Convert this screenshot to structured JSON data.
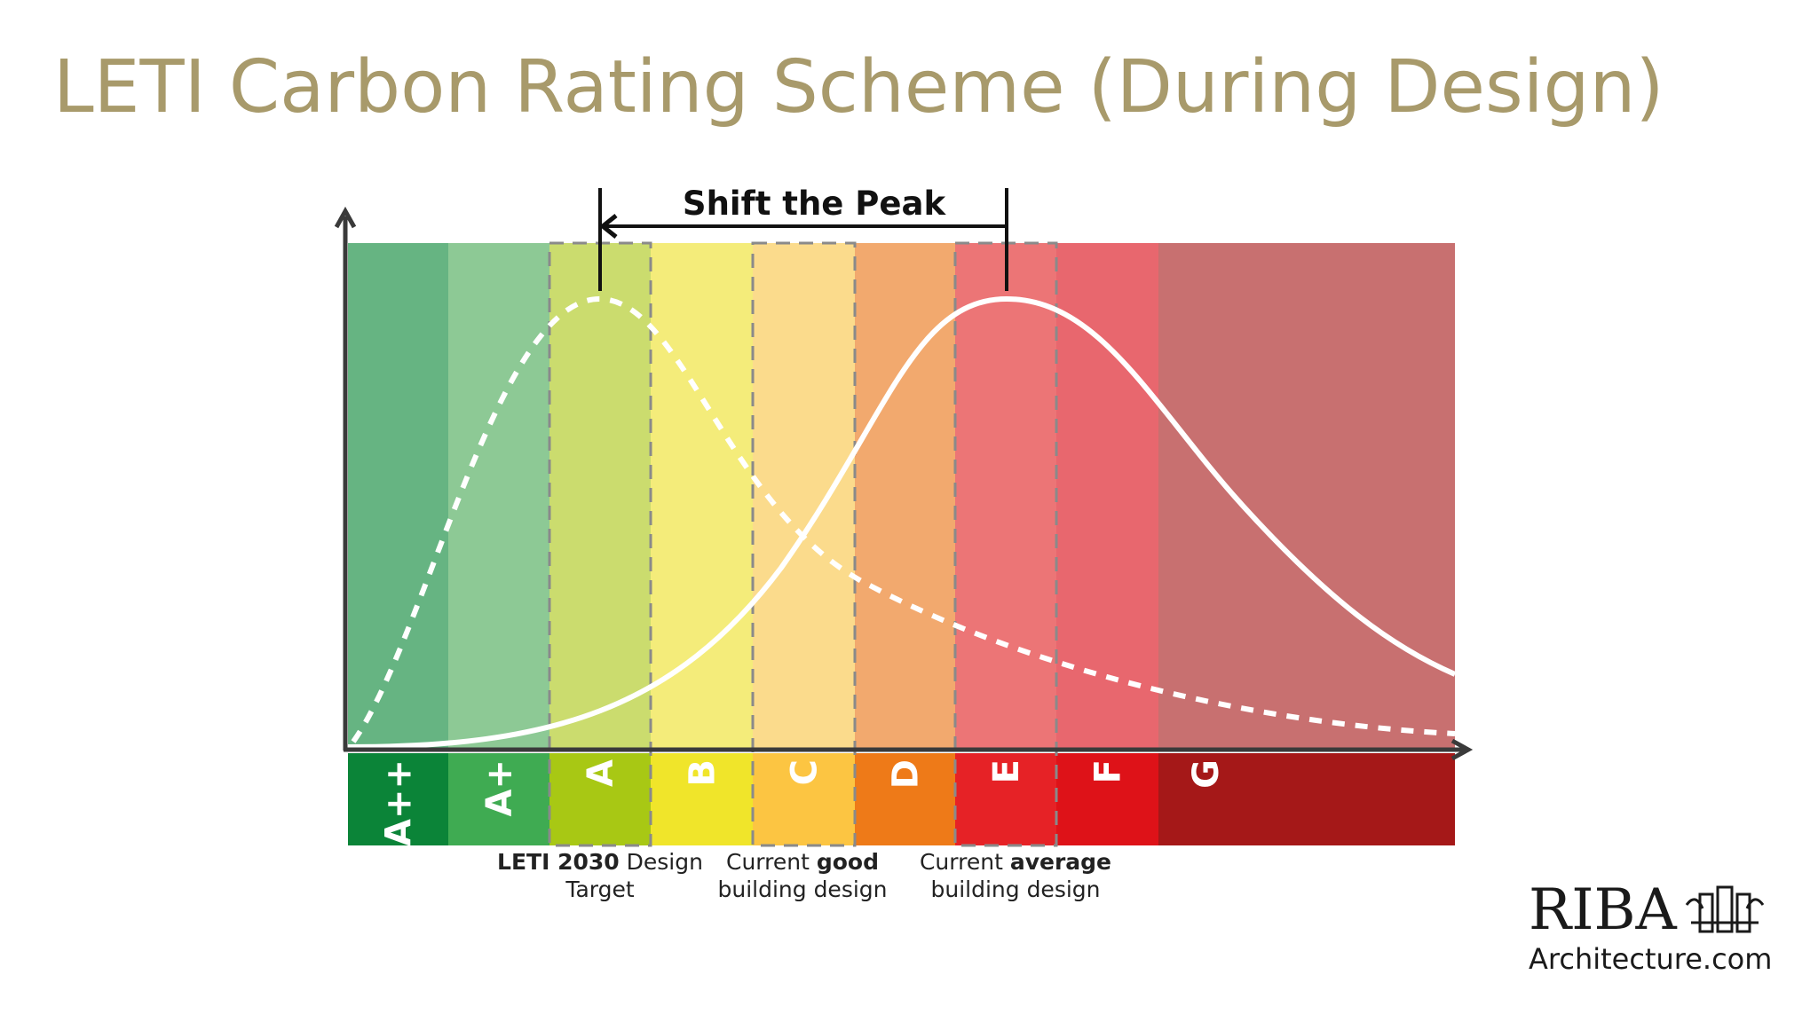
{
  "title": "LETI Carbon Rating Scheme (During Design)",
  "diagram": {
    "peak_label": "Shift the Peak",
    "bands": [
      "A++",
      "A+",
      "A",
      "B",
      "C",
      "D",
      "E",
      "F",
      "G"
    ],
    "captions": [
      {
        "bold": "LETI 2030",
        "text": "Design",
        "line2": "Target"
      },
      {
        "text": "Current",
        "bold": "good",
        "line2": "building design"
      },
      {
        "text": "Current",
        "bold": "average",
        "line2": "building design"
      }
    ]
  },
  "logo": {
    "name": "RIBA",
    "site": "Architecture.com"
  }
}
